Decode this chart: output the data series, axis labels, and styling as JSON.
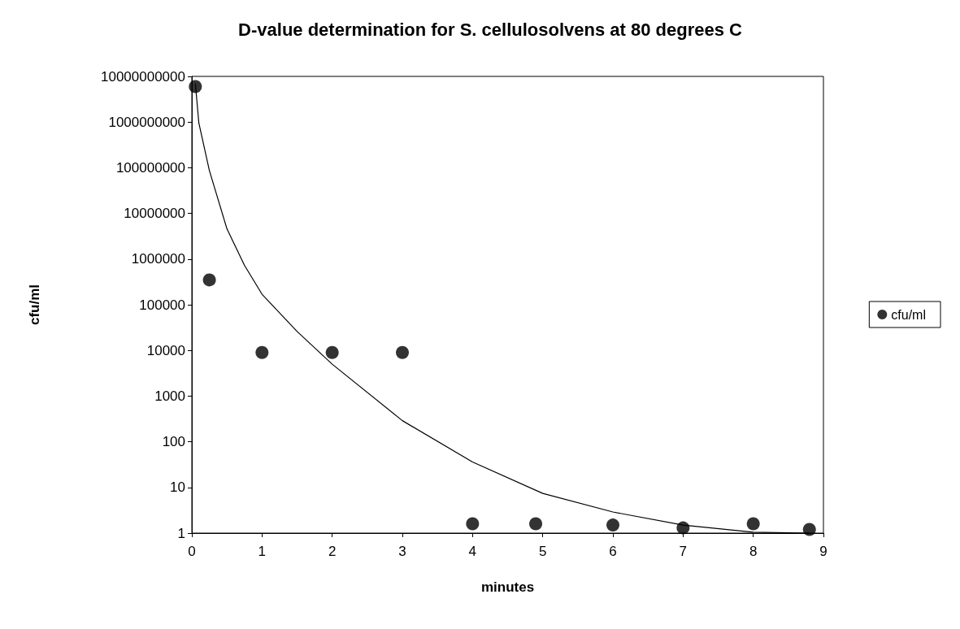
{
  "chart_data": {
    "type": "scatter",
    "title": "D-value determination for S. cellulosolvens at 80 degrees C",
    "xlabel": "minutes",
    "ylabel": "cfu/ml",
    "series": [
      {
        "name": "cfu/ml",
        "color": "#000000",
        "x": [
          0.05,
          0.25,
          1,
          2,
          3,
          4,
          4.9,
          6,
          7,
          8,
          8.8
        ],
        "values": [
          6000000000,
          350000,
          9000,
          9000,
          9000,
          1.6,
          1.6,
          1.5,
          1.3,
          1.6,
          1.2
        ]
      },
      {
        "type": "line",
        "color": "#000000",
        "marker": "none",
        "x": [
          0.05,
          0.1,
          0.25,
          0.5,
          0.75,
          1,
          1.5,
          2,
          3,
          4,
          5,
          6,
          7,
          8,
          8.8
        ],
        "values": [
          7000000000,
          950000000,
          87000000,
          4600000,
          730000,
          170000,
          26000,
          5000,
          290,
          36,
          7.4,
          2.9,
          1.5,
          1.05,
          1
        ]
      }
    ],
    "xlim": [
      0,
      9
    ],
    "xticks": [
      0,
      1,
      2,
      3,
      4,
      5,
      6,
      7,
      8,
      9
    ],
    "ylim": [
      1,
      10000000000
    ],
    "yticks": [
      1,
      10,
      100,
      1000,
      10000,
      100000,
      1000000,
      10000000,
      100000000,
      1000000000,
      10000000000
    ],
    "log": "y",
    "grid": false,
    "legend": "right",
    "marker": "circle"
  }
}
